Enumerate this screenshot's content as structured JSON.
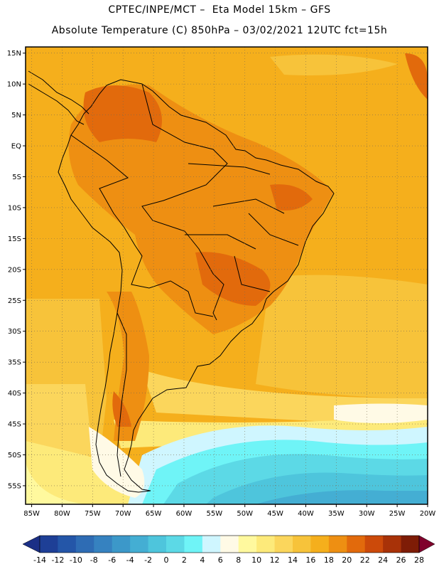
{
  "header": {
    "line1": "CPTEC/INPE/MCT –  Eta Model 15km – GFS",
    "line2": "Absolute Temperature (C) 850hPa – 03/02/2021 12UTC fct=15h"
  },
  "map": {
    "lon_range": [
      -86,
      -20
    ],
    "lat_range": [
      -58,
      16
    ],
    "lat_labels": [
      "15N",
      "10N",
      "5N",
      "EQ",
      "5S",
      "10S",
      "15S",
      "20S",
      "25S",
      "30S",
      "35S",
      "40S",
      "45S",
      "50S",
      "55S"
    ],
    "lon_labels": [
      "85W",
      "80W",
      "75W",
      "70W",
      "65W",
      "60W",
      "55W",
      "50W",
      "45W",
      "40W",
      "35W",
      "30W",
      "25W",
      "20W"
    ],
    "grid_style": "dotted"
  },
  "colorbar": {
    "labels": [
      "-14",
      "-12",
      "-10",
      "-8",
      "-6",
      "-4",
      "-2",
      "0",
      "2",
      "4",
      "6",
      "8",
      "10",
      "12",
      "14",
      "16",
      "18",
      "20",
      "22",
      "24",
      "26",
      "28"
    ],
    "colors": [
      "#1e3f96",
      "#2456a8",
      "#2e6cb4",
      "#3682c0",
      "#3c98c9",
      "#44aed3",
      "#4ec5dc",
      "#5cd9e6",
      "#6ff4f7",
      "#cff6ff",
      "#fffae6",
      "#fff99e",
      "#fdea7a",
      "#fbd65c",
      "#f7c33a",
      "#f5af1c",
      "#ee8f12",
      "#e26a0c",
      "#cc4a0a",
      "#a83208",
      "#7e1c06"
    ],
    "under_color": "#1b2f86",
    "over_color": "#80022c"
  }
}
